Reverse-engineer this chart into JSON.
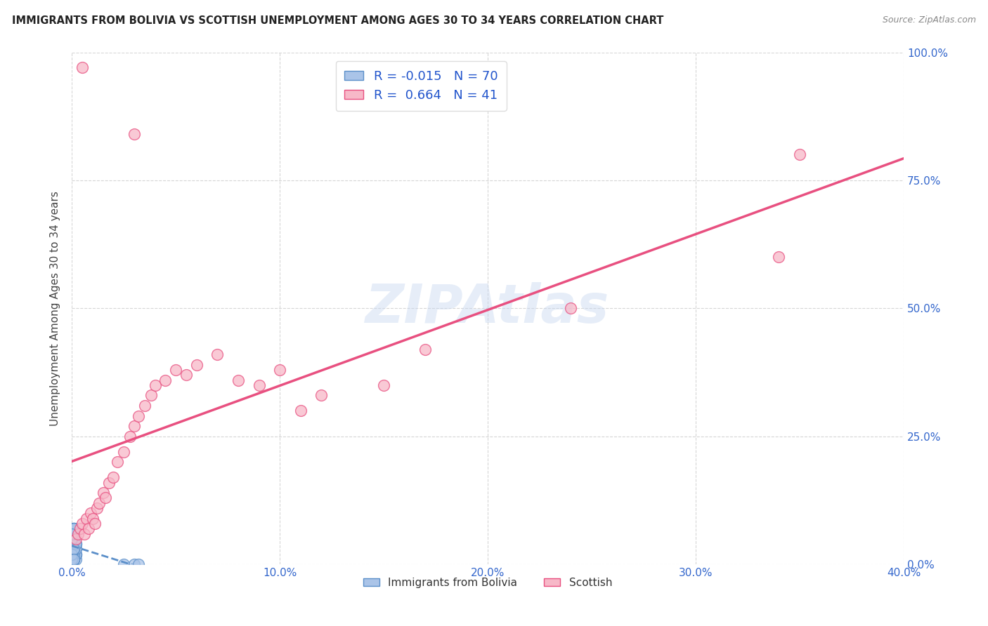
{
  "title": "IMMIGRANTS FROM BOLIVIA VS SCOTTISH UNEMPLOYMENT AMONG AGES 30 TO 34 YEARS CORRELATION CHART",
  "source": "Source: ZipAtlas.com",
  "ylabel": "Unemployment Among Ages 30 to 34 years",
  "r_bolivia": -0.015,
  "n_bolivia": 70,
  "r_scottish": 0.664,
  "n_scottish": 41,
  "watermark": "ZIPAtlas",
  "xlim": [
    0.0,
    0.4
  ],
  "ylim": [
    0.0,
    1.0
  ],
  "xticks": [
    0.0,
    0.1,
    0.2,
    0.3,
    0.4
  ],
  "xticklabels": [
    "0.0%",
    "10.0%",
    "20.0%",
    "30.0%",
    "40.0%"
  ],
  "yticks": [
    0.0,
    0.25,
    0.5,
    0.75,
    1.0
  ],
  "yticklabels": [
    "0.0%",
    "25.0%",
    "50.0%",
    "75.0%",
    "100.0%"
  ],
  "color_bolivia": "#aac4e8",
  "color_scottish": "#f7b8c8",
  "edge_bolivia": "#5b8fc9",
  "edge_scottish": "#e85080",
  "line_bolivia": "#5b8fc9",
  "line_scottish": "#e85080",
  "scottish_x": [
    0.002,
    0.003,
    0.004,
    0.005,
    0.006,
    0.007,
    0.008,
    0.009,
    0.01,
    0.011,
    0.012,
    0.013,
    0.015,
    0.016,
    0.018,
    0.02,
    0.022,
    0.025,
    0.028,
    0.03,
    0.032,
    0.035,
    0.038,
    0.04,
    0.045,
    0.05,
    0.055,
    0.06,
    0.07,
    0.08,
    0.09,
    0.1,
    0.11,
    0.12,
    0.15,
    0.17,
    0.34,
    0.35,
    0.005,
    0.24,
    0.03
  ],
  "scottish_y": [
    0.05,
    0.06,
    0.07,
    0.08,
    0.06,
    0.09,
    0.07,
    0.1,
    0.09,
    0.08,
    0.11,
    0.12,
    0.14,
    0.13,
    0.16,
    0.17,
    0.2,
    0.22,
    0.25,
    0.27,
    0.29,
    0.31,
    0.33,
    0.35,
    0.36,
    0.38,
    0.37,
    0.39,
    0.41,
    0.36,
    0.35,
    0.38,
    0.3,
    0.33,
    0.35,
    0.42,
    0.6,
    0.8,
    0.97,
    0.5,
    0.84
  ],
  "bolivia_x": [
    0.0,
    0.0,
    0.001,
    0.001,
    0.0,
    0.002,
    0.0,
    0.001,
    0.0,
    0.0,
    0.001,
    0.0,
    0.0,
    0.001,
    0.002,
    0.0,
    0.001,
    0.0,
    0.002,
    0.001,
    0.0,
    0.0,
    0.001,
    0.0,
    0.002,
    0.001,
    0.0,
    0.0,
    0.001,
    0.0,
    0.0,
    0.001,
    0.0,
    0.002,
    0.001,
    0.0,
    0.001,
    0.0,
    0.002,
    0.0,
    0.001,
    0.0,
    0.0,
    0.001,
    0.002,
    0.0,
    0.001,
    0.0,
    0.0,
    0.001,
    0.0,
    0.002,
    0.001,
    0.0,
    0.001,
    0.0,
    0.002,
    0.001,
    0.0,
    0.0,
    0.001,
    0.0,
    0.002,
    0.001,
    0.0,
    0.001,
    0.0,
    0.025,
    0.03,
    0.032
  ],
  "bolivia_y": [
    0.02,
    0.04,
    0.01,
    0.03,
    0.06,
    0.02,
    0.05,
    0.01,
    0.04,
    0.07,
    0.02,
    0.03,
    0.01,
    0.05,
    0.02,
    0.06,
    0.03,
    0.04,
    0.01,
    0.07,
    0.02,
    0.05,
    0.03,
    0.01,
    0.04,
    0.06,
    0.02,
    0.03,
    0.05,
    0.01,
    0.04,
    0.07,
    0.02,
    0.03,
    0.01,
    0.05,
    0.04,
    0.06,
    0.02,
    0.03,
    0.01,
    0.05,
    0.04,
    0.07,
    0.02,
    0.03,
    0.01,
    0.05,
    0.06,
    0.02,
    0.04,
    0.03,
    0.07,
    0.01,
    0.05,
    0.02,
    0.04,
    0.03,
    0.06,
    0.01,
    0.07,
    0.02,
    0.04,
    0.03,
    0.05,
    0.01,
    0.06,
    0.0,
    0.0,
    0.0
  ]
}
